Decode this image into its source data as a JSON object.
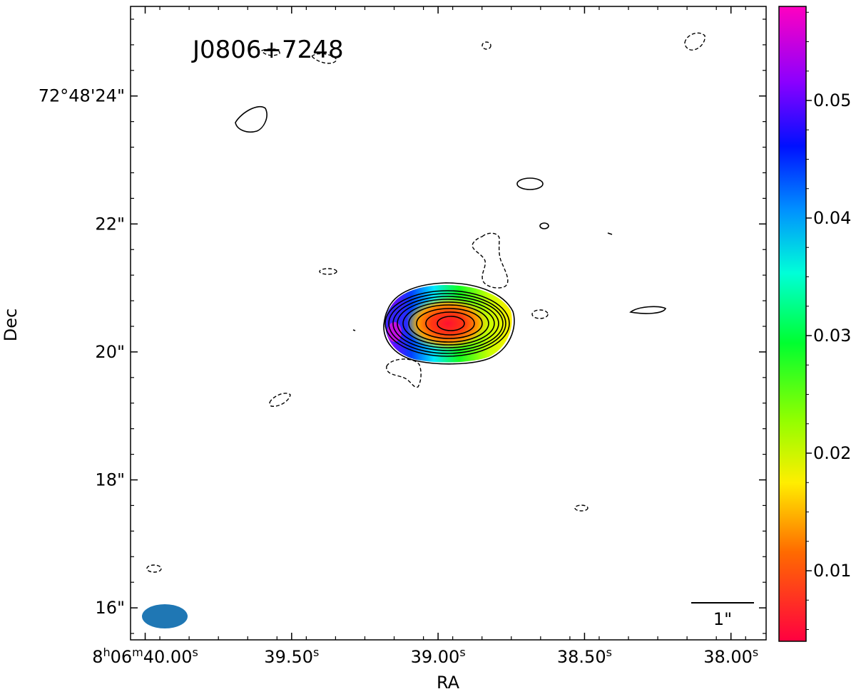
{
  "chart_data": {
    "type": "heatmap",
    "title": "J0806+7248",
    "xlabel": "RA",
    "ylabel": "Dec",
    "x_ticks": [
      {
        "hms_h": "8",
        "hms_m": "06",
        "sec": "40.00",
        "s": 40.0
      },
      {
        "sec": "39.50",
        "s": 39.5
      },
      {
        "sec": "39.00",
        "s": 39.0
      },
      {
        "sec": "38.50",
        "s": 38.5
      },
      {
        "sec": "38.00",
        "s": 38.0
      }
    ],
    "x_tick_sup_h": "h",
    "x_tick_sup_m": "m",
    "x_tick_sup_s": "s",
    "y_ticks": [
      {
        "label": "72°48'24\"",
        "arcsec": 24
      },
      {
        "label": "22\"",
        "arcsec": 22
      },
      {
        "label": "20\"",
        "arcsec": 20
      },
      {
        "label": "18\"",
        "arcsec": 18
      },
      {
        "label": "16\"",
        "arcsec": 16
      }
    ],
    "xlim_ra_seconds": [
      40.05,
      37.88
    ],
    "ylim_dec_arcsec": [
      15.5,
      25.4
    ],
    "colorbar": {
      "colormap": "gist_rainbow",
      "range": [
        0.004,
        0.058
      ],
      "ticks": [
        {
          "value": 0.01,
          "label": "0.01"
        },
        {
          "value": 0.02,
          "label": "0.02"
        },
        {
          "value": 0.03,
          "label": "0.03"
        },
        {
          "value": 0.04,
          "label": "0.04"
        },
        {
          "value": 0.05,
          "label": "0.05"
        }
      ]
    },
    "source_peak": {
      "ra_s": 38.98,
      "dec_arcsec": 20.45
    },
    "contour_levels_count": 10,
    "scale_bar_label": "1\"",
    "scale_bar_arcsec": 1.0,
    "beam": {
      "ra_s": 39.99,
      "dec_arcsec": 15.83,
      "major_arcsec": 0.8,
      "minor_arcsec": 0.4,
      "color": "#1f77b4"
    },
    "grid": false,
    "ticks_direction": "in"
  }
}
